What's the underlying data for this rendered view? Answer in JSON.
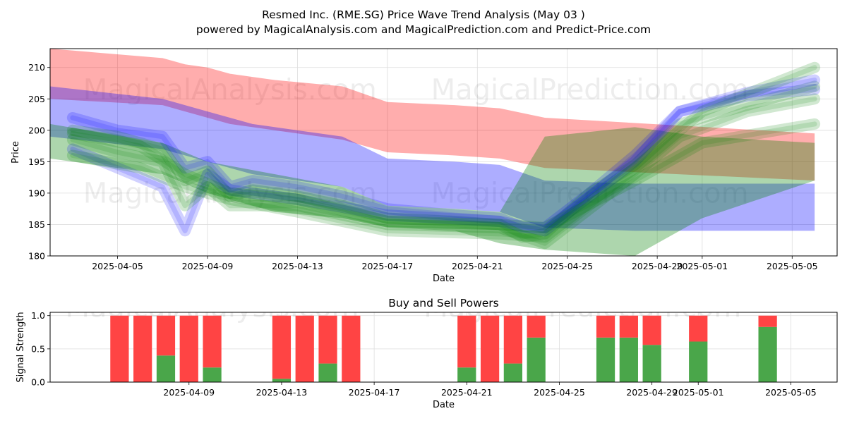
{
  "header": {
    "title": "Resmed Inc. (RME.SG) Price Wave Trend Analysis (May 03 )",
    "subtitle": "powered by MagicalAnalysis.com and MagicalPrediction.com and Predict-Price.com"
  },
  "watermarks": [
    "MagicalAnalysis.com",
    "MagicalPrediction.com"
  ],
  "colors": {
    "red": "#ff0000",
    "blue": "#0000ff",
    "green": "#008000",
    "buy": "#4aa64a",
    "sell": "#ff4444",
    "grid": "#dddddd"
  },
  "chart_data": [
    {
      "type": "area",
      "title": "",
      "xlabel": "Date",
      "ylabel": "Price",
      "ylim": [
        180,
        213
      ],
      "xlim": [
        "2025-04-02",
        "2025-05-07"
      ],
      "grid": true,
      "y_ticks": [
        180,
        185,
        190,
        195,
        200,
        205,
        210
      ],
      "x_ticks": [
        "2025-04-05",
        "2025-04-09",
        "2025-04-13",
        "2025-04-17",
        "2025-04-21",
        "2025-04-25",
        "2025-04-29",
        "2025-05-01",
        "2025-05-05"
      ],
      "bands": [
        {
          "color": "red",
          "x": [
            "2025-04-02",
            "2025-04-07",
            "2025-04-08",
            "2025-04-09",
            "2025-04-10",
            "2025-04-12",
            "2025-04-15",
            "2025-04-17",
            "2025-04-20",
            "2025-04-22",
            "2025-04-24",
            "2025-05-06"
          ],
          "upper": [
            213,
            211.5,
            210.5,
            210,
            209,
            208,
            207,
            204.5,
            204,
            203.5,
            202,
            199.5
          ],
          "lower": [
            205,
            204,
            203,
            202,
            201,
            200,
            198.5,
            196.5,
            196,
            195.5,
            194,
            192
          ]
        },
        {
          "color": "blue",
          "x": [
            "2025-04-02",
            "2025-04-07",
            "2025-04-09",
            "2025-04-11",
            "2025-04-13",
            "2025-04-15",
            "2025-04-17",
            "2025-04-20",
            "2025-04-22",
            "2025-04-24",
            "2025-04-28",
            "2025-05-06"
          ],
          "upper": [
            207,
            205,
            203,
            201,
            200,
            199,
            195.5,
            195,
            194.5,
            192,
            191.5,
            191.5
          ],
          "lower": [
            199,
            197,
            195,
            193,
            192,
            191,
            188,
            187.5,
            187,
            184.5,
            184,
            184
          ]
        },
        {
          "color": "green",
          "x": [
            "2025-04-02",
            "2025-04-07",
            "2025-04-09",
            "2025-04-12",
            "2025-04-15",
            "2025-04-17",
            "2025-04-20",
            "2025-04-22",
            "2025-04-24",
            "2025-04-28",
            "2025-05-01",
            "2025-05-06"
          ],
          "upper": [
            201,
            198,
            195,
            193,
            191,
            188,
            187.5,
            187,
            199,
            200.5,
            199,
            198
          ],
          "lower": [
            195.5,
            193,
            190,
            187,
            186,
            184.5,
            184,
            182,
            181,
            180,
            186,
            192
          ]
        }
      ],
      "wave_lines": [
        {
          "color": "blue",
          "x": [
            "2025-04-03",
            "2025-04-05",
            "2025-04-07",
            "2025-04-08",
            "2025-04-09",
            "2025-04-10",
            "2025-04-11",
            "2025-04-13",
            "2025-04-15",
            "2025-04-17",
            "2025-04-20",
            "2025-04-22",
            "2025-04-23",
            "2025-04-24",
            "2025-04-26",
            "2025-04-28",
            "2025-04-30",
            "2025-05-03",
            "2025-05-06"
          ],
          "y": [
            202,
            200,
            199,
            194,
            195,
            191,
            192,
            191,
            189.5,
            187.5,
            186.5,
            186,
            184.5,
            184.5,
            190,
            196,
            203,
            205.5,
            206.5
          ]
        },
        {
          "color": "green",
          "x": [
            "2025-04-03",
            "2025-04-05",
            "2025-04-07",
            "2025-04-08",
            "2025-04-09",
            "2025-04-10",
            "2025-04-11",
            "2025-04-13",
            "2025-04-15",
            "2025-04-17",
            "2025-04-20",
            "2025-04-22",
            "2025-04-23",
            "2025-04-24",
            "2025-04-26",
            "2025-04-28",
            "2025-04-30",
            "2025-05-03",
            "2025-05-06"
          ],
          "y": [
            200,
            199,
            197,
            192,
            193.5,
            189.5,
            190.5,
            189.5,
            188,
            186,
            185.5,
            185,
            183,
            183.5,
            190,
            194.5,
            201,
            204,
            207
          ]
        },
        {
          "color": "blue",
          "x": [
            "2025-04-03",
            "2025-04-05",
            "2025-04-07",
            "2025-04-08",
            "2025-04-09",
            "2025-04-10",
            "2025-04-13",
            "2025-04-17",
            "2025-04-22",
            "2025-04-24",
            "2025-04-28",
            "2025-04-30",
            "2025-05-03",
            "2025-05-06"
          ],
          "y": [
            197,
            194,
            191,
            184,
            193,
            190.5,
            189,
            186.5,
            185.5,
            184,
            195,
            203,
            206,
            208
          ]
        },
        {
          "color": "green",
          "x": [
            "2025-04-03",
            "2025-04-05",
            "2025-04-07",
            "2025-04-08",
            "2025-04-09",
            "2025-04-10",
            "2025-04-13",
            "2025-04-17",
            "2025-04-22",
            "2025-04-24",
            "2025-04-28",
            "2025-04-30",
            "2025-05-03",
            "2025-05-06"
          ],
          "y": [
            198.5,
            196.5,
            195,
            188,
            191,
            188,
            188,
            185,
            184.5,
            182,
            193,
            199,
            203,
            205
          ]
        },
        {
          "color": "green",
          "x": [
            "2025-04-03",
            "2025-04-06",
            "2025-04-08",
            "2025-04-10",
            "2025-04-13",
            "2025-04-17",
            "2025-04-22",
            "2025-04-24",
            "2025-04-28",
            "2025-05-01",
            "2025-05-06"
          ],
          "y": [
            196,
            194,
            191,
            189,
            187,
            184,
            183.5,
            183,
            194,
            203,
            210
          ]
        },
        {
          "color": "green",
          "x": [
            "2025-04-03",
            "2025-04-06",
            "2025-04-08",
            "2025-04-10",
            "2025-04-13",
            "2025-04-17",
            "2025-04-22",
            "2025-04-24",
            "2025-04-28",
            "2025-05-01",
            "2025-05-06"
          ],
          "y": [
            199.5,
            197.5,
            193,
            190,
            189,
            185.5,
            185,
            184.5,
            192,
            198,
            201
          ]
        }
      ]
    },
    {
      "type": "bar",
      "title": "Buy and Sell Powers",
      "xlabel": "Date",
      "ylabel": "Signal Strength",
      "ylim": [
        0,
        1.05
      ],
      "xlim": [
        "2025-04-03",
        "2025-05-07"
      ],
      "grid": true,
      "y_ticks": [
        "0.0",
        "0.5",
        "1.0"
      ],
      "x_ticks": [
        "2025-04-09",
        "2025-04-13",
        "2025-04-17",
        "2025-04-21",
        "2025-04-25",
        "2025-04-29",
        "2025-05-01",
        "2025-05-05"
      ],
      "dates": [
        "2025-04-06",
        "2025-04-07",
        "2025-04-08",
        "2025-04-09",
        "2025-04-10",
        "2025-04-13",
        "2025-04-14",
        "2025-04-15",
        "2025-04-16",
        "2025-04-21",
        "2025-04-22",
        "2025-04-23",
        "2025-04-24",
        "2025-04-27",
        "2025-04-28",
        "2025-04-29",
        "2025-05-01",
        "2025-05-04"
      ],
      "series": [
        {
          "name": "Buy",
          "values": [
            0,
            0,
            0.4,
            0,
            0.22,
            0.05,
            0,
            0.28,
            0,
            0.22,
            0,
            0.28,
            0.67,
            0.67,
            0.67,
            0.56,
            0.61,
            0.83
          ]
        },
        {
          "name": "Sell",
          "values": [
            1,
            1,
            0.6,
            1,
            0.78,
            0.95,
            1,
            0.72,
            1,
            0.78,
            1,
            0.72,
            0.33,
            0.33,
            0.33,
            0.44,
            0.39,
            0.17
          ]
        }
      ]
    }
  ]
}
